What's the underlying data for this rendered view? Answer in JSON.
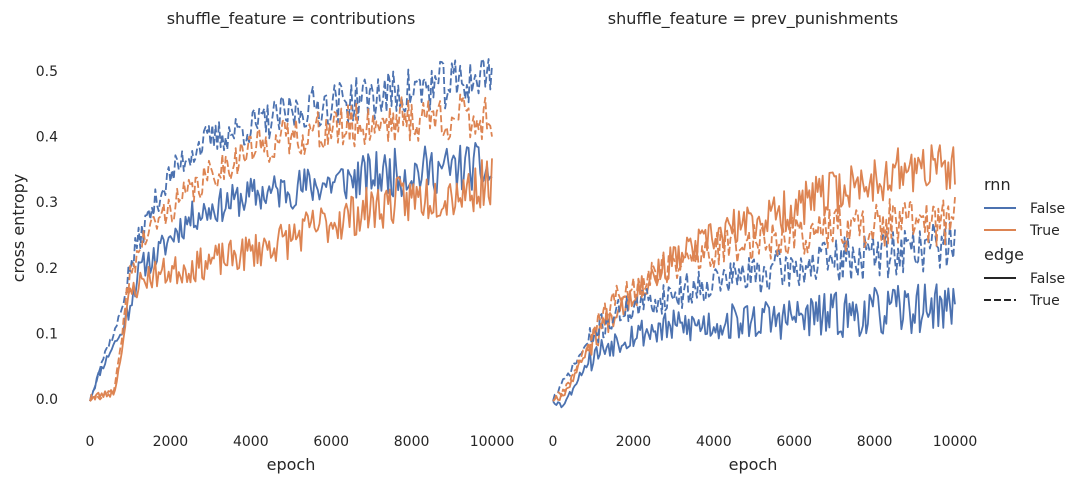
{
  "chart_data": [
    {
      "type": "line",
      "title": "shuffle_feature = contributions",
      "xlabel": "epoch",
      "ylabel": "cross entropy",
      "xlim": [
        0,
        10000
      ],
      "ylim": [
        -0.05,
        0.55
      ],
      "xticks": [
        0,
        2000,
        4000,
        6000,
        8000,
        10000
      ],
      "xtick_labels": [
        "0",
        "2000",
        "4000",
        "6000",
        "8000",
        "10000"
      ],
      "yticks": [
        0.0,
        0.1,
        0.2,
        0.3,
        0.4,
        0.5
      ],
      "ytick_labels": [
        "0.0",
        "0.1",
        "0.2",
        "0.3",
        "0.4",
        "0.5"
      ],
      "grid": false,
      "series": [
        {
          "rnn": "False",
          "edge": "False",
          "points": [
            [
              0,
              0.0
            ],
            [
              200,
              0.035
            ],
            [
              400,
              0.06
            ],
            [
              600,
              0.085
            ],
            [
              800,
              0.1
            ],
            [
              1000,
              0.15
            ],
            [
              1200,
              0.19
            ],
            [
              1400,
              0.21
            ],
            [
              1600,
              0.215
            ],
            [
              1800,
              0.23
            ],
            [
              2000,
              0.245
            ],
            [
              2200,
              0.26
            ],
            [
              2400,
              0.27
            ],
            [
              2600,
              0.28
            ],
            [
              2800,
              0.285
            ],
            [
              3000,
              0.29
            ],
            [
              3500,
              0.3
            ],
            [
              4000,
              0.31
            ],
            [
              4500,
              0.315
            ],
            [
              5000,
              0.32
            ],
            [
              5500,
              0.325
            ],
            [
              6000,
              0.33
            ],
            [
              6500,
              0.335
            ],
            [
              7000,
              0.34
            ],
            [
              7500,
              0.345
            ],
            [
              8000,
              0.345
            ],
            [
              8500,
              0.35
            ],
            [
              9000,
              0.35
            ],
            [
              9500,
              0.355
            ],
            [
              10000,
              0.34
            ]
          ]
        },
        {
          "rnn": "True",
          "edge": "False",
          "points": [
            [
              0,
              0.0
            ],
            [
              200,
              0.006
            ],
            [
              400,
              0.007
            ],
            [
              600,
              0.01
            ],
            [
              700,
              0.04
            ],
            [
              800,
              0.08
            ],
            [
              900,
              0.12
            ],
            [
              1000,
              0.16
            ],
            [
              1200,
              0.175
            ],
            [
              1400,
              0.185
            ],
            [
              1600,
              0.19
            ],
            [
              2000,
              0.195
            ],
            [
              2500,
              0.2
            ],
            [
              3000,
              0.21
            ],
            [
              3500,
              0.215
            ],
            [
              4000,
              0.225
            ],
            [
              4500,
              0.235
            ],
            [
              5000,
              0.245
            ],
            [
              5500,
              0.26
            ],
            [
              6000,
              0.27
            ],
            [
              6500,
              0.28
            ],
            [
              7000,
              0.29
            ],
            [
              7500,
              0.3
            ],
            [
              8000,
              0.305
            ],
            [
              8500,
              0.31
            ],
            [
              9000,
              0.315
            ],
            [
              9500,
              0.32
            ],
            [
              10000,
              0.335
            ]
          ]
        },
        {
          "rnn": "False",
          "edge": "True",
          "points": [
            [
              0,
              0.0
            ],
            [
              200,
              0.04
            ],
            [
              400,
              0.075
            ],
            [
              600,
              0.1
            ],
            [
              800,
              0.14
            ],
            [
              1000,
              0.2
            ],
            [
              1200,
              0.24
            ],
            [
              1400,
              0.27
            ],
            [
              1600,
              0.295
            ],
            [
              1800,
              0.32
            ],
            [
              2000,
              0.34
            ],
            [
              2200,
              0.355
            ],
            [
              2400,
              0.37
            ],
            [
              2600,
              0.38
            ],
            [
              2800,
              0.39
            ],
            [
              3000,
              0.395
            ],
            [
              3500,
              0.405
            ],
            [
              4000,
              0.415
            ],
            [
              4500,
              0.425
            ],
            [
              5000,
              0.435
            ],
            [
              5500,
              0.445
            ],
            [
              6000,
              0.45
            ],
            [
              6500,
              0.455
            ],
            [
              7000,
              0.46
            ],
            [
              7500,
              0.465
            ],
            [
              8000,
              0.47
            ],
            [
              8500,
              0.475
            ],
            [
              9000,
              0.48
            ],
            [
              9500,
              0.485
            ],
            [
              10000,
              0.5
            ]
          ]
        },
        {
          "rnn": "True",
          "edge": "True",
          "points": [
            [
              0,
              0.0
            ],
            [
              200,
              0.005
            ],
            [
              400,
              0.007
            ],
            [
              600,
              0.012
            ],
            [
              700,
              0.05
            ],
            [
              800,
              0.1
            ],
            [
              900,
              0.15
            ],
            [
              1000,
              0.19
            ],
            [
              1200,
              0.225
            ],
            [
              1400,
              0.25
            ],
            [
              1600,
              0.265
            ],
            [
              1800,
              0.28
            ],
            [
              2000,
              0.29
            ],
            [
              2400,
              0.31
            ],
            [
              2800,
              0.33
            ],
            [
              3200,
              0.35
            ],
            [
              3600,
              0.365
            ],
            [
              4000,
              0.38
            ],
            [
              4500,
              0.39
            ],
            [
              5000,
              0.4
            ],
            [
              5500,
              0.405
            ],
            [
              6000,
              0.41
            ],
            [
              6500,
              0.415
            ],
            [
              7000,
              0.42
            ],
            [
              7500,
              0.425
            ],
            [
              8000,
              0.425
            ],
            [
              8500,
              0.43
            ],
            [
              9000,
              0.43
            ],
            [
              9500,
              0.425
            ],
            [
              10000,
              0.43
            ]
          ]
        }
      ]
    },
    {
      "type": "line",
      "title": "shuffle_feature = prev_punishments",
      "xlabel": "epoch",
      "ylabel": "",
      "xlim": [
        0,
        10000
      ],
      "ylim": [
        -0.05,
        0.55
      ],
      "xticks": [
        0,
        2000,
        4000,
        6000,
        8000,
        10000
      ],
      "xtick_labels": [
        "0",
        "2000",
        "4000",
        "6000",
        "8000",
        "10000"
      ],
      "grid": false,
      "series": [
        {
          "rnn": "False",
          "edge": "False",
          "points": [
            [
              0,
              0.0
            ],
            [
              200,
              -0.01
            ],
            [
              400,
              0.005
            ],
            [
              600,
              0.03
            ],
            [
              800,
              0.05
            ],
            [
              1000,
              0.065
            ],
            [
              1200,
              0.075
            ],
            [
              1400,
              0.085
            ],
            [
              1600,
              0.09
            ],
            [
              2000,
              0.1
            ],
            [
              2500,
              0.105
            ],
            [
              3000,
              0.11
            ],
            [
              3500,
              0.112
            ],
            [
              4000,
              0.115
            ],
            [
              4500,
              0.118
            ],
            [
              5000,
              0.12
            ],
            [
              5500,
              0.122
            ],
            [
              6000,
              0.124
            ],
            [
              6500,
              0.126
            ],
            [
              7000,
              0.128
            ],
            [
              7500,
              0.13
            ],
            [
              8000,
              0.132
            ],
            [
              8500,
              0.135
            ],
            [
              9000,
              0.138
            ],
            [
              9500,
              0.142
            ],
            [
              10000,
              0.14
            ]
          ]
        },
        {
          "rnn": "True",
          "edge": "False",
          "points": [
            [
              0,
              0.0
            ],
            [
              200,
              0.005
            ],
            [
              400,
              0.02
            ],
            [
              600,
              0.045
            ],
            [
              800,
              0.07
            ],
            [
              1000,
              0.09
            ],
            [
              1200,
              0.11
            ],
            [
              1400,
              0.125
            ],
            [
              1600,
              0.14
            ],
            [
              2000,
              0.16
            ],
            [
              2500,
              0.19
            ],
            [
              3000,
              0.21
            ],
            [
              3500,
              0.23
            ],
            [
              4000,
              0.245
            ],
            [
              4500,
              0.26
            ],
            [
              5000,
              0.27
            ],
            [
              5500,
              0.28
            ],
            [
              6000,
              0.29
            ],
            [
              6500,
              0.305
            ],
            [
              7000,
              0.315
            ],
            [
              7500,
              0.325
            ],
            [
              8000,
              0.335
            ],
            [
              8500,
              0.345
            ],
            [
              9000,
              0.35
            ],
            [
              9500,
              0.355
            ],
            [
              10000,
              0.345
            ]
          ]
        },
        {
          "rnn": "False",
          "edge": "True",
          "points": [
            [
              0,
              0.0
            ],
            [
              200,
              0.02
            ],
            [
              400,
              0.04
            ],
            [
              600,
              0.06
            ],
            [
              800,
              0.08
            ],
            [
              1000,
              0.095
            ],
            [
              1200,
              0.11
            ],
            [
              1400,
              0.12
            ],
            [
              1600,
              0.13
            ],
            [
              2000,
              0.14
            ],
            [
              2500,
              0.15
            ],
            [
              3000,
              0.16
            ],
            [
              3500,
              0.17
            ],
            [
              4000,
              0.18
            ],
            [
              4500,
              0.185
            ],
            [
              5000,
              0.19
            ],
            [
              5500,
              0.195
            ],
            [
              6000,
              0.2
            ],
            [
              6500,
              0.205
            ],
            [
              7000,
              0.21
            ],
            [
              7500,
              0.215
            ],
            [
              8000,
              0.22
            ],
            [
              8500,
              0.225
            ],
            [
              9000,
              0.23
            ],
            [
              9500,
              0.235
            ],
            [
              10000,
              0.24
            ]
          ]
        },
        {
          "rnn": "True",
          "edge": "True",
          "points": [
            [
              0,
              0.0
            ],
            [
              200,
              0.008
            ],
            [
              400,
              0.025
            ],
            [
              600,
              0.05
            ],
            [
              800,
              0.075
            ],
            [
              1000,
              0.1
            ],
            [
              1200,
              0.125
            ],
            [
              1400,
              0.14
            ],
            [
              1600,
              0.155
            ],
            [
              2000,
              0.17
            ],
            [
              2500,
              0.19
            ],
            [
              3000,
              0.205
            ],
            [
              3500,
              0.215
            ],
            [
              4000,
              0.225
            ],
            [
              4500,
              0.235
            ],
            [
              5000,
              0.24
            ],
            [
              5500,
              0.245
            ],
            [
              6000,
              0.25
            ],
            [
              6500,
              0.255
            ],
            [
              7000,
              0.26
            ],
            [
              7500,
              0.262
            ],
            [
              8000,
              0.265
            ],
            [
              8500,
              0.268
            ],
            [
              9000,
              0.27
            ],
            [
              9500,
              0.27
            ],
            [
              10000,
              0.275
            ]
          ]
        }
      ]
    }
  ],
  "legend": {
    "placement": "right",
    "hue_title": "rnn",
    "hue_entries": [
      {
        "label": "False",
        "color": "#4c72b0"
      },
      {
        "label": "True",
        "color": "#dd8452"
      }
    ],
    "style_title": "edge",
    "style_entries": [
      {
        "label": "False",
        "dash": "solid"
      },
      {
        "label": "True",
        "dash": "dashed"
      }
    ]
  }
}
